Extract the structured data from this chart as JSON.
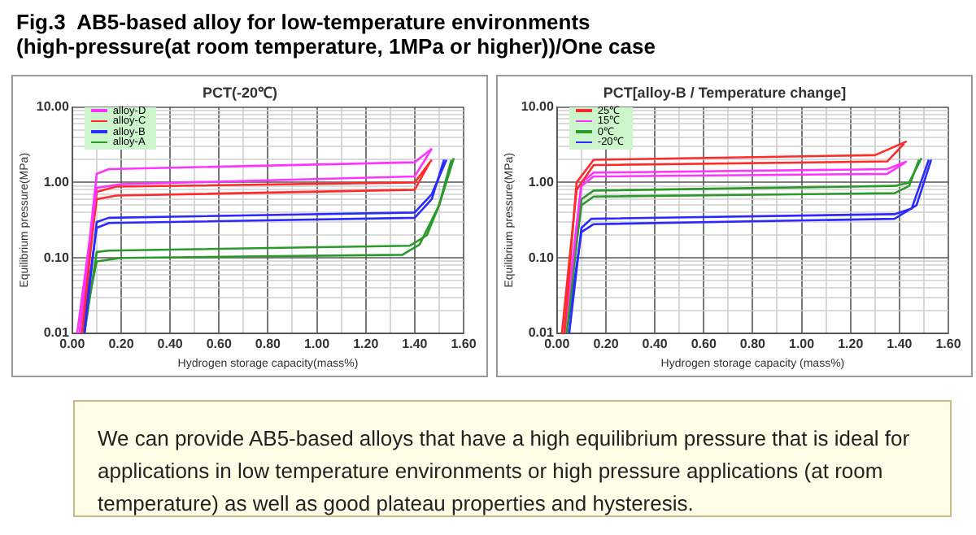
{
  "chart_data": [
    {
      "type": "line",
      "title": "PCT(-20℃)",
      "xlabel": "Hydrogen storage capacity(mass%)",
      "ylabel": "Equilibrium pressure(MPa)",
      "annotations": [
        "Fig.3  AB5-based alloy for low-temperature environments\n(high-pressure(at room temperature, 1MPa or higher))/One case"
      ],
      "log": "y",
      "grid": true,
      "legend": "top left",
      "marker": "none",
      "line_style": "solid",
      "xlim": [
        0,
        1.6
      ],
      "xticks": [
        {
          "value": 0,
          "label": "0.00"
        },
        {
          "value": 0.1,
          "label": null
        },
        {
          "value": 0.2,
          "label": "0.20"
        },
        {
          "value": 0.3,
          "label": null
        },
        {
          "value": 0.4,
          "label": "0.40"
        },
        {
          "value": 0.5,
          "label": null
        },
        {
          "value": 0.6,
          "label": "0.60"
        },
        {
          "value": 0.7,
          "label": null
        },
        {
          "value": 0.8,
          "label": "0.80"
        },
        {
          "value": 0.9,
          "label": null
        },
        {
          "value": 1,
          "label": "1.00"
        },
        {
          "value": 1.1,
          "label": null
        },
        {
          "value": 1.2,
          "label": "1.20"
        },
        {
          "value": 1.3,
          "label": null
        },
        {
          "value": 1.4,
          "label": "1.40"
        },
        {
          "value": 1.5,
          "label": null
        },
        {
          "value": 1.6,
          "label": "1.60"
        }
      ],
      "ylim": [
        0.01,
        10
      ],
      "yticks": [
        {
          "value": 0.01,
          "label": "0.01"
        },
        {
          "value": 0.02,
          "label": null
        },
        {
          "value": 0.03,
          "label": null
        },
        {
          "value": 0.04,
          "label": null
        },
        {
          "value": 0.05,
          "label": null
        },
        {
          "value": 0.06,
          "label": null
        },
        {
          "value": 0.07,
          "label": null
        },
        {
          "value": 0.08,
          "label": null
        },
        {
          "value": 0.09,
          "label": null
        },
        {
          "value": 0.1,
          "label": "0.10"
        },
        {
          "value": 0.2,
          "label": null
        },
        {
          "value": 0.3,
          "label": null
        },
        {
          "value": 0.4,
          "label": null
        },
        {
          "value": 0.5,
          "label": null
        },
        {
          "value": 0.6,
          "label": null
        },
        {
          "value": 0.7,
          "label": null
        },
        {
          "value": 0.8,
          "label": null
        },
        {
          "value": 0.9,
          "label": null
        },
        {
          "value": 1,
          "label": "1.00"
        },
        {
          "value": 2,
          "label": null
        },
        {
          "value": 3,
          "label": null
        },
        {
          "value": 4,
          "label": null
        },
        {
          "value": 5,
          "label": null
        },
        {
          "value": 6,
          "label": null
        },
        {
          "value": 7,
          "label": null
        },
        {
          "value": 8,
          "label": null
        },
        {
          "value": 9,
          "label": null
        },
        {
          "value": 10,
          "label": "10.00"
        }
      ],
      "series": [
        {
          "name": "alloy-D",
          "color": "#ff33ff",
          "x": [
            0.03,
            0.1,
            0.15,
            1.4,
            1.47
          ],
          "values": [
            0.01,
            1.3,
            1.5,
            1.85,
            2.8
          ]
        },
        {
          "color": "#ff33ff",
          "x": [
            0.02,
            0.1,
            0.2,
            1.4,
            1.47
          ],
          "values": [
            0.01,
            0.85,
            0.95,
            1.2,
            2.8
          ]
        },
        {
          "name": "alloy-C",
          "color": "#ff2a2a",
          "x": [
            0.04,
            0.1,
            0.18,
            1.4,
            1.47
          ],
          "values": [
            0.01,
            0.75,
            0.88,
            1.0,
            2.0
          ]
        },
        {
          "color": "#ff2a2a",
          "x": [
            0.03,
            0.1,
            0.18,
            1.4,
            1.46
          ],
          "values": [
            0.01,
            0.6,
            0.67,
            0.8,
            1.8
          ]
        },
        {
          "name": "alloy-B",
          "color": "#2a2aff",
          "x": [
            0.05,
            0.1,
            0.15,
            1.4,
            1.47,
            1.53
          ],
          "values": [
            0.01,
            0.3,
            0.34,
            0.4,
            0.7,
            2.0
          ]
        },
        {
          "color": "#2a2aff",
          "x": [
            0.04,
            0.1,
            0.15,
            1.4,
            1.47,
            1.52
          ],
          "values": [
            0.01,
            0.25,
            0.29,
            0.34,
            0.6,
            2.0
          ]
        },
        {
          "name": "alloy-A",
          "color": "#2a9a2a",
          "x": [
            0.05,
            0.1,
            0.15,
            1.38,
            1.45,
            1.5,
            1.56
          ],
          "values": [
            0.01,
            0.12,
            0.125,
            0.145,
            0.2,
            0.5,
            2.1
          ]
        },
        {
          "color": "#2a9a2a",
          "x": [
            0.04,
            0.1,
            0.2,
            1.35,
            1.42,
            1.5,
            1.55
          ],
          "values": [
            0.01,
            0.09,
            0.1,
            0.11,
            0.15,
            0.5,
            2.0
          ]
        }
      ]
    },
    {
      "type": "line",
      "title": "PCT[alloy-B / Temperature change]",
      "xlabel": "Hydrogen storage capacity (mass%)",
      "ylabel": "Equilibrium pressure(MPa)",
      "annotations": [
        "We can provide AB5-based alloys that have a high equilibrium pressure that is ideal for applications in low temperature environments or high pressure applications (at room temperature) as well as good plateau properties and hysteresis."
      ],
      "log": "y",
      "grid": true,
      "legend": "top left",
      "marker": "none",
      "line_style": "solid",
      "xlim": [
        0,
        1.6
      ],
      "xticks": [
        {
          "value": 0,
          "label": "0.00"
        },
        {
          "value": 0.1,
          "label": null
        },
        {
          "value": 0.2,
          "label": "0.20"
        },
        {
          "value": 0.3,
          "label": null
        },
        {
          "value": 0.4,
          "label": "0.40"
        },
        {
          "value": 0.5,
          "label": null
        },
        {
          "value": 0.6,
          "label": "0.60"
        },
        {
          "value": 0.7,
          "label": null
        },
        {
          "value": 0.8,
          "label": "0.80"
        },
        {
          "value": 0.9,
          "label": null
        },
        {
          "value": 1,
          "label": "1.00"
        },
        {
          "value": 1.1,
          "label": null
        },
        {
          "value": 1.2,
          "label": "1.20"
        },
        {
          "value": 1.3,
          "label": null
        },
        {
          "value": 1.4,
          "label": "1.40"
        },
        {
          "value": 1.5,
          "label": null
        },
        {
          "value": 1.6,
          "label": "1.60"
        }
      ],
      "ylim": [
        0.01,
        10
      ],
      "yticks": [
        {
          "value": 0.01,
          "label": "0.01"
        },
        {
          "value": 0.02,
          "label": null
        },
        {
          "value": 0.03,
          "label": null
        },
        {
          "value": 0.04,
          "label": null
        },
        {
          "value": 0.05,
          "label": null
        },
        {
          "value": 0.06,
          "label": null
        },
        {
          "value": 0.07,
          "label": null
        },
        {
          "value": 0.08,
          "label": null
        },
        {
          "value": 0.09,
          "label": null
        },
        {
          "value": 0.1,
          "label": "0.10"
        },
        {
          "value": 0.2,
          "label": null
        },
        {
          "value": 0.3,
          "label": null
        },
        {
          "value": 0.4,
          "label": null
        },
        {
          "value": 0.5,
          "label": null
        },
        {
          "value": 0.6,
          "label": null
        },
        {
          "value": 0.7,
          "label": null
        },
        {
          "value": 0.8,
          "label": null
        },
        {
          "value": 0.9,
          "label": null
        },
        {
          "value": 1,
          "label": "1.00"
        },
        {
          "value": 2,
          "label": null
        },
        {
          "value": 3,
          "label": null
        },
        {
          "value": 4,
          "label": null
        },
        {
          "value": 5,
          "label": null
        },
        {
          "value": 6,
          "label": null
        },
        {
          "value": 7,
          "label": null
        },
        {
          "value": 8,
          "label": null
        },
        {
          "value": 9,
          "label": null
        },
        {
          "value": 10,
          "label": "10.00"
        }
      ],
      "series": [
        {
          "name": "25℃",
          "color": "#ff2a2a",
          "x": [
            0.03,
            0.08,
            0.15,
            1.3,
            1.43
          ],
          "values": [
            0.01,
            1.0,
            2.0,
            2.3,
            3.5
          ]
        },
        {
          "color": "#ff2a2a",
          "x": [
            0.02,
            0.08,
            0.15,
            1.35,
            1.42
          ],
          "values": [
            0.01,
            0.8,
            1.7,
            1.9,
            3.3
          ]
        },
        {
          "name": "15℃",
          "color": "#ff33ff",
          "x": [
            0.03,
            0.1,
            0.15,
            1.35,
            1.43
          ],
          "values": [
            0.01,
            1.0,
            1.35,
            1.5,
            1.9
          ]
        },
        {
          "color": "#ff33ff",
          "x": [
            0.03,
            0.1,
            0.15,
            1.35,
            1.42
          ],
          "values": [
            0.01,
            0.9,
            1.2,
            1.3,
            1.8
          ]
        },
        {
          "name": "0℃",
          "color": "#2a9a2a",
          "x": [
            0.04,
            0.1,
            0.15,
            1.38,
            1.44,
            1.49
          ],
          "values": [
            0.01,
            0.6,
            0.78,
            0.9,
            1.0,
            2.1
          ]
        },
        {
          "color": "#2a9a2a",
          "x": [
            0.03,
            0.1,
            0.15,
            1.38,
            1.44,
            1.48
          ],
          "values": [
            0.01,
            0.5,
            0.65,
            0.72,
            0.9,
            2.0
          ]
        },
        {
          "name": "-20℃",
          "color": "#2a2aff",
          "x": [
            0.05,
            0.1,
            0.14,
            1.38,
            1.45,
            1.52
          ],
          "values": [
            0.01,
            0.25,
            0.33,
            0.38,
            0.45,
            2.0
          ]
        },
        {
          "color": "#2a2aff",
          "x": [
            0.04,
            0.1,
            0.15,
            1.38,
            1.47,
            1.53
          ],
          "values": [
            0.01,
            0.22,
            0.28,
            0.33,
            0.5,
            2.0
          ]
        }
      ]
    }
  ]
}
